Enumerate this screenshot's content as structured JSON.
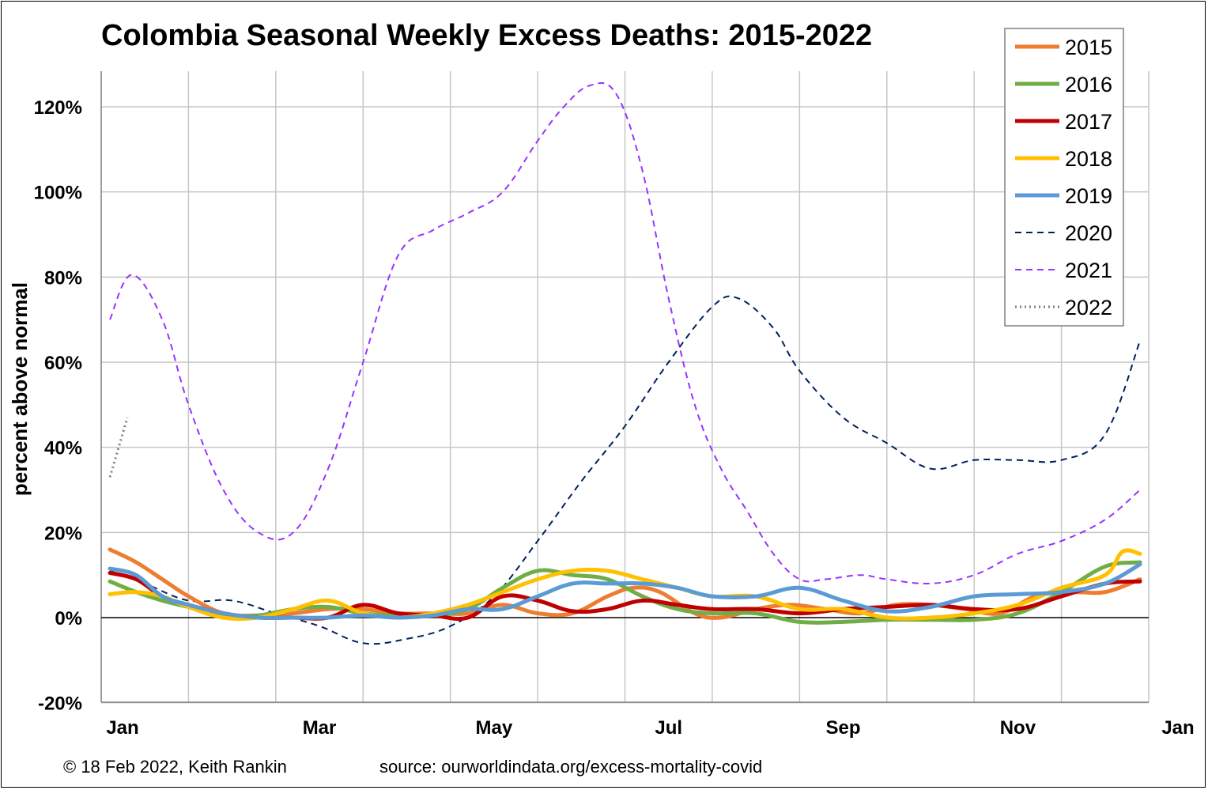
{
  "chart_data": {
    "type": "line",
    "title": "Colombia Seasonal Weekly Excess Deaths: 2015-2022",
    "ylabel": "percent above normal",
    "ylim": [
      -20,
      130
    ],
    "y_ticks": [
      -20,
      0,
      20,
      40,
      60,
      80,
      100,
      120
    ],
    "y_tick_labels": [
      "-20%",
      "0%",
      "20%",
      "40%",
      "60%",
      "80%",
      "100%",
      "120%"
    ],
    "x_unit": "month",
    "xlim": [
      0,
      12
    ],
    "x_ticks": [
      0.5,
      2.5,
      4.5,
      6.5,
      8.5,
      10.5,
      12.5
    ],
    "x_tick_labels": [
      "Jan",
      "Mar",
      "May",
      "Jul",
      "Sep",
      "Nov",
      "Jan"
    ],
    "grid": true,
    "legend_position": "top-right",
    "series": [
      {
        "name": "2015",
        "color": "#ED7D31",
        "style": "solid",
        "x": [
          0.1,
          0.4,
          0.7,
          1.0,
          1.4,
          1.8,
          2.2,
          2.6,
          3.0,
          3.4,
          3.8,
          4.2,
          4.6,
          5.0,
          5.4,
          5.8,
          6.1,
          6.4,
          6.8,
          7.1,
          7.5,
          7.9,
          8.3,
          8.7,
          9.1,
          9.5,
          9.9,
          10.3,
          10.7,
          11.1,
          11.5,
          11.9
        ],
        "y": [
          16,
          13,
          9,
          5,
          1,
          0.5,
          1,
          2,
          2,
          1,
          1,
          1,
          3,
          1,
          1,
          5,
          7,
          6,
          1,
          0,
          2,
          3,
          2,
          1,
          3,
          3,
          2,
          1,
          5,
          6,
          6,
          9
        ]
      },
      {
        "name": "2016",
        "color": "#70AD47",
        "style": "solid",
        "x": [
          0.1,
          0.4,
          0.7,
          1.0,
          1.4,
          1.8,
          2.2,
          2.6,
          3.0,
          3.4,
          3.8,
          4.2,
          4.6,
          5.0,
          5.4,
          5.8,
          6.2,
          6.6,
          7.0,
          7.5,
          8.0,
          8.5,
          9.0,
          9.5,
          10.0,
          10.5,
          11.0,
          11.5,
          11.9
        ],
        "y": [
          8.5,
          6,
          4,
          2.5,
          0.5,
          0.5,
          2,
          2.5,
          1,
          0.5,
          0.5,
          2,
          7,
          11,
          10,
          9,
          5,
          2,
          1,
          1,
          -1,
          -1,
          -0.5,
          -0.5,
          -0.5,
          1,
          6,
          12,
          13
        ]
      },
      {
        "name": "2017",
        "color": "#C00000",
        "style": "solid",
        "x": [
          0.1,
          0.4,
          0.7,
          1.0,
          1.4,
          1.8,
          2.2,
          2.6,
          3.0,
          3.4,
          3.8,
          4.2,
          4.6,
          5.0,
          5.4,
          5.8,
          6.2,
          6.6,
          7.0,
          7.5,
          8.0,
          8.5,
          9.0,
          9.5,
          10.0,
          10.5,
          11.0,
          11.5,
          11.9
        ],
        "y": [
          10.5,
          9,
          5,
          3,
          1,
          0,
          0,
          0,
          3,
          1,
          0.5,
          0,
          5,
          4,
          1.5,
          2,
          4,
          3,
          2,
          2,
          1,
          2,
          2.5,
          3,
          2,
          2,
          5,
          8,
          8.5
        ]
      },
      {
        "name": "2018",
        "color": "#FFC000",
        "style": "solid",
        "x": [
          0.1,
          0.4,
          0.7,
          1.0,
          1.4,
          1.8,
          2.2,
          2.6,
          3.0,
          3.4,
          3.8,
          4.2,
          4.6,
          5.0,
          5.4,
          5.8,
          6.2,
          6.6,
          7.0,
          7.5,
          8.0,
          8.5,
          9.0,
          9.5,
          10.0,
          10.5,
          11.0,
          11.5,
          11.7,
          11.9
        ],
        "y": [
          5.5,
          6,
          5,
          2.5,
          0,
          0,
          2,
          4,
          1,
          0,
          1,
          3,
          6,
          9,
          11,
          11,
          9,
          7,
          5,
          5,
          2,
          2,
          0,
          0,
          1,
          3,
          7,
          10,
          15.5,
          15
        ]
      },
      {
        "name": "2019",
        "color": "#5B9BD5",
        "style": "solid",
        "x": [
          0.1,
          0.4,
          0.7,
          1.0,
          1.4,
          1.8,
          2.2,
          2.6,
          3.0,
          3.4,
          3.8,
          4.2,
          4.6,
          5.0,
          5.4,
          5.8,
          6.2,
          6.6,
          7.0,
          7.5,
          8.0,
          8.5,
          9.0,
          9.5,
          10.0,
          10.5,
          11.0,
          11.5,
          11.9
        ],
        "y": [
          11.5,
          10,
          5,
          3,
          1,
          0,
          0,
          0,
          0.5,
          0,
          0.5,
          2,
          2,
          5,
          8,
          8,
          8,
          7,
          5,
          5,
          7,
          4,
          1.5,
          2.5,
          5,
          5.5,
          6,
          8,
          12.5
        ]
      },
      {
        "name": "2020",
        "color": "#002060",
        "style": "dash",
        "x": [
          0.1,
          0.5,
          1.0,
          1.5,
          2.0,
          2.5,
          3.0,
          3.5,
          4.0,
          4.5,
          5.0,
          5.5,
          6.0,
          6.5,
          7.0,
          7.3,
          7.7,
          8.0,
          8.5,
          9.0,
          9.5,
          10.0,
          10.5,
          11.0,
          11.5,
          11.9
        ],
        "y": [
          11,
          8,
          4,
          4,
          1,
          -2,
          -6,
          -5,
          -2,
          5,
          18,
          32,
          45,
          60,
          73,
          75,
          68,
          58,
          47,
          41,
          35,
          37,
          37,
          37,
          43,
          65
        ]
      },
      {
        "name": "2021",
        "color": "#9933FF",
        "style": "dash",
        "x": [
          0.1,
          0.35,
          0.7,
          1.0,
          1.4,
          1.8,
          2.2,
          2.6,
          3.0,
          3.4,
          3.8,
          4.2,
          4.6,
          5.0,
          5.3,
          5.6,
          5.9,
          6.2,
          6.5,
          6.8,
          7.1,
          7.4,
          7.7,
          8.0,
          8.3,
          8.7,
          9.0,
          9.5,
          10.0,
          10.5,
          11.0,
          11.5,
          11.9
        ],
        "y": [
          70,
          80.5,
          70,
          50,
          30,
          20,
          20,
          35,
          60,
          85,
          91,
          95,
          100,
          112,
          120,
          125,
          123,
          105,
          75,
          50,
          35,
          25,
          15,
          9,
          9,
          10,
          9,
          8,
          10,
          15,
          18,
          23,
          30
        ]
      },
      {
        "name": "2022",
        "color": "#7F7F7F",
        "style": "dot",
        "x": [
          0.1,
          0.3
        ],
        "y": [
          33,
          47
        ]
      }
    ]
  },
  "footer": {
    "copyright": "© 18 Feb 2022, Keith Rankin",
    "source": "source: ourworldindata.org/excess-mortality-covid"
  }
}
